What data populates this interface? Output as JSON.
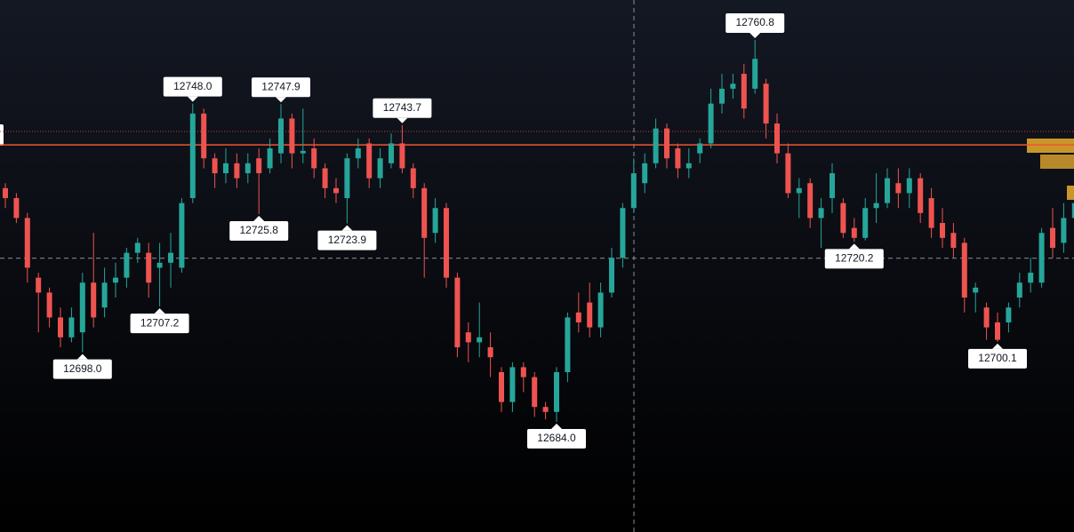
{
  "chart_data": {
    "type": "candlestick",
    "up_color": "#26a69a",
    "down_color": "#ef5350",
    "open": [
      12731,
      12729,
      12725,
      12713,
      12710,
      12705,
      12701,
      12702,
      12712,
      12707,
      12712,
      12713,
      12718,
      12718,
      12715,
      12716,
      12715,
      12729,
      12746,
      12737,
      12734,
      12736,
      12734,
      12737,
      12735,
      12738,
      12745,
      12738,
      12739,
      12735,
      12731,
      12729,
      12737,
      12740,
      12733,
      12736,
      12740,
      12735,
      12731,
      12722,
      12727,
      12713,
      12702,
      12700,
      12699,
      12694,
      12688,
      12695,
      12693,
      12687,
      12686,
      12694,
      12706,
      12708,
      12703,
      12710,
      12717,
      12727,
      12732,
      12736,
      12743,
      12739,
      12735,
      12738,
      12740,
      12748,
      12751,
      12754,
      12751,
      12752,
      12744,
      12738,
      12730,
      12732,
      12725,
      12729,
      12728,
      12723,
      12721,
      12727,
      12728,
      12732,
      12730,
      12733,
      12729,
      12724,
      12722,
      12720,
      12710,
      12707,
      12704,
      12704,
      12709,
      12712,
      12712,
      12723,
      12720,
      12725
    ],
    "high": [
      12732,
      12730,
      12726,
      12714,
      12711,
      12707,
      12707,
      12714,
      12722,
      12715,
      12716,
      12719,
      12721,
      12720,
      12720,
      12722,
      12729,
      12748,
      12747,
      12738,
      12739,
      12738,
      12738,
      12739,
      12741,
      12747.9,
      12746,
      12747,
      12741,
      12736,
      12733,
      12738,
      12741,
      12741,
      12739,
      12742,
      12743.7,
      12736,
      12732,
      12729,
      12728,
      12714,
      12704,
      12708,
      12702,
      12695,
      12696,
      12696,
      12694,
      12688,
      12695,
      12706,
      12710,
      12712,
      12712,
      12719,
      12728,
      12737,
      12738,
      12745,
      12744,
      12740,
      12739,
      12741,
      12751,
      12754,
      12754,
      12756,
      12760.8,
      12753,
      12746,
      12740,
      12733,
      12733,
      12729,
      12736,
      12729,
      12725,
      12729,
      12734,
      12735,
      12735,
      12735,
      12734,
      12731,
      12727,
      12724,
      12721,
      12712,
      12708,
      12706,
      12708,
      12714,
      12717,
      12723,
      12727,
      12728,
      12732
    ],
    "low": [
      12727,
      12724,
      12712,
      12702,
      12703,
      12699,
      12700,
      12698,
      12703,
      12705,
      12709,
      12711,
      12716,
      12709,
      12707.2,
      12711,
      12714,
      12728,
      12735,
      12731,
      12732,
      12731,
      12732,
      12725.8,
      12734,
      12736,
      12735,
      12736,
      12733,
      12729,
      12728,
      12723.9,
      12735,
      12731,
      12731,
      12735,
      12734,
      12729,
      12713,
      12720,
      12711,
      12697,
      12696,
      12697,
      12693,
      12686,
      12686,
      12690,
      12685,
      12684.5,
      12684,
      12692,
      12702,
      12701,
      12701,
      12709,
      12715,
      12726,
      12730,
      12735,
      12735,
      12733,
      12733,
      12736,
      12739,
      12746,
      12749,
      12745,
      12750,
      12741,
      12736,
      12729,
      12725,
      12723,
      12719,
      12726,
      12721,
      12720.2,
      12720.5,
      12724,
      12727,
      12727,
      12727,
      12724,
      12721,
      12719,
      12717,
      12706,
      12706,
      12700.5,
      12700.1,
      12702,
      12707,
      12710,
      12711,
      12717,
      12718,
      12724
    ],
    "close": [
      12729,
      12725,
      12715,
      12710,
      12705,
      12701,
      12705,
      12712,
      12705,
      12712,
      12713,
      12718,
      12720,
      12712,
      12716,
      12718,
      12728,
      12746,
      12737,
      12734,
      12736,
      12733,
      12736,
      12734,
      12739,
      12745,
      12738,
      12738.5,
      12735,
      12731,
      12730,
      12737,
      12739,
      12733,
      12737,
      12740,
      12735,
      12731,
      12721,
      12727,
      12713,
      12699,
      12700,
      12701,
      12697,
      12688,
      12695,
      12693,
      12687,
      12686,
      12694,
      12705,
      12704,
      12703,
      12710,
      12717,
      12727,
      12734,
      12736,
      12743,
      12737,
      12735,
      12736,
      12740,
      12748,
      12751,
      12752,
      12747,
      12757,
      12744,
      12738,
      12730,
      12731,
      12725,
      12727,
      12734,
      12722,
      12721,
      12727,
      12728,
      12733,
      12730,
      12733,
      12726,
      12723,
      12721,
      12719,
      12709,
      12711,
      12703,
      12700.5,
      12707,
      12712,
      12714,
      12722,
      12719,
      12725,
      12728
    ],
    "annotations": [
      {
        "value": 12748,
        "label": "12748.0"
      },
      {
        "value": 12747.9,
        "label": "12747.9"
      },
      {
        "value": 12743.7,
        "label": "12743.7"
      },
      {
        "value": 12760.8,
        "label": "12760.8"
      },
      {
        "value": 12725.8,
        "label": "12725.8"
      },
      {
        "value": 12723.9,
        "label": "12723.9"
      },
      {
        "value": 12707.2,
        "label": "12707.2"
      },
      {
        "value": 12698,
        "label": "12698.0"
      },
      {
        "value": 12684,
        "label": "12684.0"
      },
      {
        "value": 12720.2,
        "label": "12720.2"
      },
      {
        "value": 12700.1,
        "label": "12700.1"
      }
    ],
    "lines": [
      {
        "value": 12739.7,
        "color": "#f0552e",
        "style": "solid"
      },
      {
        "value": 12742.4,
        "color": "#c0453a",
        "style": "dotted"
      },
      {
        "value": 12716.9,
        "color": "#8a8e99",
        "style": "dashed"
      }
    ]
  }
}
